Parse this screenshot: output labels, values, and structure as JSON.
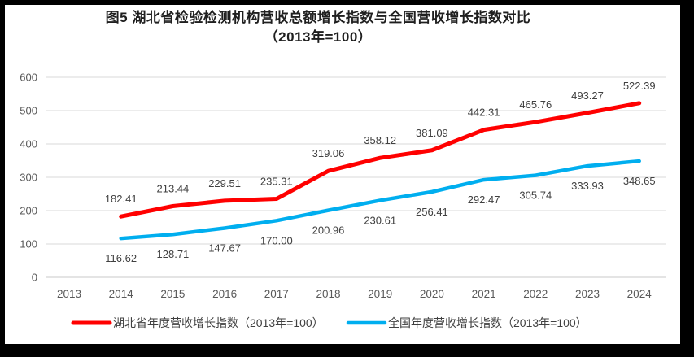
{
  "chart_data": {
    "type": "line",
    "title": "图5 湖北省检验检测机构营收总额增长指数与全国营收增长指数对比",
    "subtitle": "（2013年=100）",
    "x_categories": [
      "2013",
      "2014",
      "2015",
      "2016",
      "2017",
      "2018",
      "2019",
      "2020",
      "2021",
      "2022",
      "2023",
      "2024"
    ],
    "y_axis": {
      "min": 0,
      "max": 600,
      "ticks": [
        0,
        100,
        200,
        300,
        400,
        500,
        600
      ]
    },
    "grid": true,
    "legend_position": "bottom",
    "series": [
      {
        "key": "hubei",
        "name": "湖北省年度营收增长指数（2013年=100）",
        "color": "#FF0000",
        "start_category": "2014",
        "values": [
          182.41,
          213.44,
          229.51,
          235.31,
          319.06,
          358.12,
          381.09,
          442.31,
          465.76,
          493.27,
          522.39
        ],
        "labels": [
          "182.41",
          "213.44",
          "229.51",
          "235.31",
          "319.06",
          "358.12",
          "381.09",
          "442.31",
          "465.76",
          "493.27",
          "522.39"
        ],
        "label_side": "above"
      },
      {
        "key": "national",
        "name": "全国年度营收增长指数（2013年=100）",
        "color": "#00AEEF",
        "start_category": "2014",
        "values": [
          116.62,
          128.71,
          147.67,
          170.0,
          200.96,
          230.61,
          256.41,
          292.47,
          305.74,
          333.93,
          348.65
        ],
        "labels": [
          "116.62",
          "128.71",
          "147.67",
          "170.00",
          "200.96",
          "230.61",
          "256.41",
          "292.47",
          "305.74",
          "333.93",
          "348.65"
        ],
        "label_side": "below"
      }
    ],
    "colors": {
      "gridline": "#D9D9D9",
      "axis_line": "#C9C9C9",
      "tick_label": "#595959",
      "data_label": "#404040",
      "legend_label": "#404040",
      "title": "#1F1F1F"
    }
  }
}
